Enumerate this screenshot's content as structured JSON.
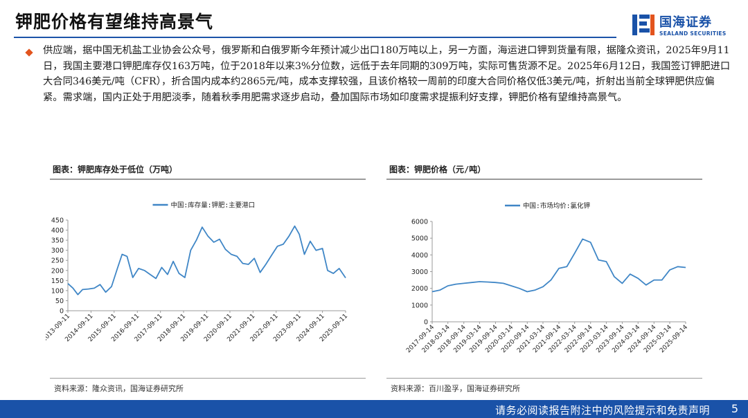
{
  "page": {
    "title": "钾肥价格有望维持高景气",
    "brand": {
      "cn": "国海证券",
      "en": "SEALAND SECURITIES"
    },
    "paragraph": "供应端，据中国无机盐工业协会公众号，俄罗斯和白俄罗斯今年预计减少出口180万吨以上，另一方面，海运进口钾到货量有限，据隆众资讯，2025年9月11日，我国主要港口钾肥库存仅163万吨，位于2018年以来3%分位数，远低于去年同期的309万吨，实际可售货源不足。2025年6月12日，我国签订钾肥进口大合同346美元/吨（CFR），折合国内成本约2865元/吨，成本支撑较强，且该价格较一周前的印度大合同价格仅低3美元/吨，折射出当前全球钾肥供应偏紧。需求端，国内正处于用肥淡季，随着秋季用肥需求逐步启动，叠加国际市场如印度需求提振利好支撑，钾肥价格有望维持高景气。",
    "disclaimer": "请务必阅读报告附注中的风险提示和免责声明",
    "page_number": "5",
    "colors": {
      "brand_blue": "#1a52a8",
      "series_blue": "#3f86c6",
      "bullet_orange": "#e2541e"
    }
  },
  "chart_data": [
    {
      "type": "line",
      "panel_title": "图表：钾肥库存处于低位（万吨）",
      "source": "资料来源：隆众资讯，国海证券研究所",
      "series": [
        {
          "name": "中国:库存量:钾肥:主要港口",
          "points": [
            [
              "2013-09-11",
              135
            ],
            [
              "2013-12-01",
              112
            ],
            [
              "2014-02-15",
              80
            ],
            [
              "2014-05-01",
              105
            ],
            [
              "2014-08-01",
              108
            ],
            [
              "2014-11-01",
              112
            ],
            [
              "2015-02-01",
              130
            ],
            [
              "2015-05-01",
              92
            ],
            [
              "2015-08-01",
              120
            ],
            [
              "2015-11-01",
              210
            ],
            [
              "2016-01-15",
              280
            ],
            [
              "2016-04-01",
              270
            ],
            [
              "2016-07-01",
              165
            ],
            [
              "2016-10-01",
              210
            ],
            [
              "2017-01-01",
              200
            ],
            [
              "2017-04-01",
              180
            ],
            [
              "2017-07-01",
              160
            ],
            [
              "2017-10-01",
              215
            ],
            [
              "2018-01-01",
              180
            ],
            [
              "2018-04-01",
              245
            ],
            [
              "2018-07-01",
              185
            ],
            [
              "2018-10-01",
              165
            ],
            [
              "2019-01-01",
              300
            ],
            [
              "2019-04-01",
              350
            ],
            [
              "2019-07-01",
              415
            ],
            [
              "2019-10-01",
              370
            ],
            [
              "2020-01-01",
              340
            ],
            [
              "2020-04-01",
              355
            ],
            [
              "2020-07-01",
              305
            ],
            [
              "2020-10-01",
              280
            ],
            [
              "2021-01-01",
              270
            ],
            [
              "2021-04-01",
              235
            ],
            [
              "2021-07-01",
              230
            ],
            [
              "2021-10-01",
              260
            ],
            [
              "2022-01-01",
              190
            ],
            [
              "2022-04-01",
              230
            ],
            [
              "2022-07-01",
              275
            ],
            [
              "2022-10-01",
              320
            ],
            [
              "2023-01-01",
              330
            ],
            [
              "2023-04-01",
              370
            ],
            [
              "2023-07-01",
              420
            ],
            [
              "2023-09-11",
              380
            ],
            [
              "2023-12-01",
              280
            ],
            [
              "2024-03-01",
              345
            ],
            [
              "2024-06-01",
              300
            ],
            [
              "2024-09-11",
              309
            ],
            [
              "2024-12-01",
              200
            ],
            [
              "2025-03-01",
              185
            ],
            [
              "2025-06-01",
              210
            ],
            [
              "2025-09-11",
              163
            ]
          ]
        }
      ],
      "x_ticks": [
        "2013-09-11",
        "2014-09-11",
        "2015-09-11",
        "2016-09-11",
        "2017-09-11",
        "2018-09-11",
        "2019-09-11",
        "2020-09-11",
        "2021-09-11",
        "2022-09-11",
        "2023-09-11",
        "2024-09-11",
        "2025-09-11"
      ],
      "y_ticks": [
        0,
        50,
        100,
        150,
        200,
        250,
        300,
        350,
        400,
        450
      ],
      "ylim": [
        0,
        450
      ],
      "xlim": [
        "2013-09-11",
        "2025-09-11"
      ],
      "legend_position": "top-center",
      "grid": false
    },
    {
      "type": "line",
      "panel_title": "图表：钾肥价格（元/吨）",
      "source": "资料来源：百川盈孚，国海证券研究所",
      "series": [
        {
          "name": "中国:市场均价:氯化钾",
          "points": [
            [
              "2017-09-14",
              1800
            ],
            [
              "2017-12-14",
              1900
            ],
            [
              "2018-03-14",
              2150
            ],
            [
              "2018-06-14",
              2250
            ],
            [
              "2018-09-14",
              2300
            ],
            [
              "2018-12-14",
              2350
            ],
            [
              "2019-03-14",
              2400
            ],
            [
              "2019-06-14",
              2380
            ],
            [
              "2019-09-14",
              2350
            ],
            [
              "2019-12-14",
              2300
            ],
            [
              "2020-03-14",
              2150
            ],
            [
              "2020-06-14",
              2000
            ],
            [
              "2020-09-14",
              1800
            ],
            [
              "2020-12-14",
              1900
            ],
            [
              "2021-03-14",
              2100
            ],
            [
              "2021-06-14",
              2500
            ],
            [
              "2021-09-14",
              3200
            ],
            [
              "2021-12-14",
              3300
            ],
            [
              "2022-03-14",
              4100
            ],
            [
              "2022-06-14",
              4950
            ],
            [
              "2022-09-14",
              4750
            ],
            [
              "2022-12-14",
              3700
            ],
            [
              "2023-03-14",
              3600
            ],
            [
              "2023-06-14",
              2700
            ],
            [
              "2023-09-14",
              2300
            ],
            [
              "2023-12-14",
              2850
            ],
            [
              "2024-03-14",
              2600
            ],
            [
              "2024-06-14",
              2200
            ],
            [
              "2024-09-14",
              2500
            ],
            [
              "2024-12-14",
              2500
            ],
            [
              "2025-03-14",
              3100
            ],
            [
              "2025-06-14",
              3300
            ],
            [
              "2025-09-14",
              3250
            ]
          ]
        }
      ],
      "x_ticks": [
        "2017-09-14",
        "2018-03-14",
        "2018-09-14",
        "2019-03-14",
        "2019-09-14",
        "2020-03-14",
        "2020-09-14",
        "2021-03-14",
        "2021-09-14",
        "2022-03-14",
        "2022-09-14",
        "2023-03-14",
        "2023-09-14",
        "2024-03-14",
        "2024-09-14",
        "2025-03-14",
        "2025-09-14"
      ],
      "y_ticks": [
        0,
        1000,
        2000,
        3000,
        4000,
        5000,
        6000
      ],
      "ylim": [
        0,
        6000
      ],
      "xlim": [
        "2017-09-14",
        "2025-09-14"
      ],
      "legend_position": "top-center",
      "grid": false
    }
  ]
}
